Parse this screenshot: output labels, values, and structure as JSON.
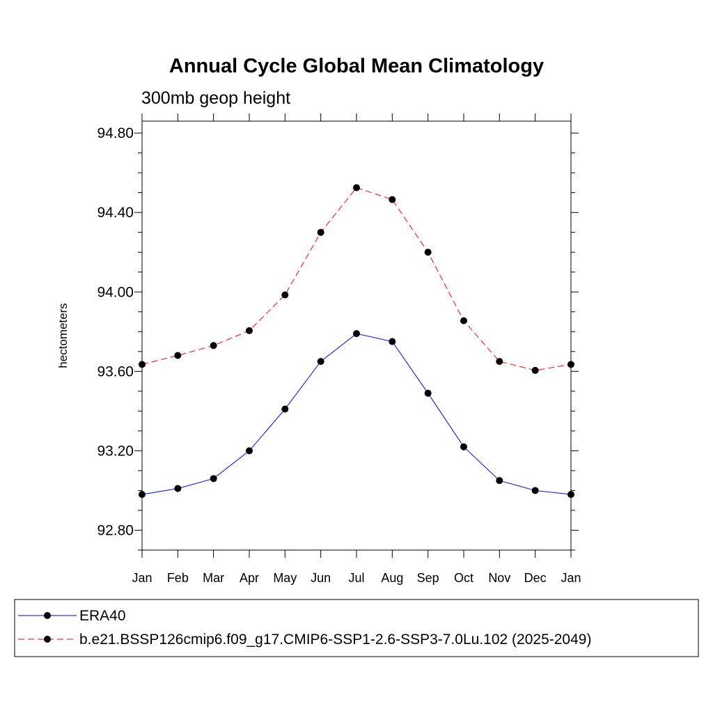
{
  "chart_data": {
    "type": "line",
    "title": "Annual Cycle Global Mean Climatology",
    "subtitle": "300mb geop height",
    "ylabel": "hectometers",
    "xlabel": "",
    "categories": [
      "Jan",
      "Feb",
      "Mar",
      "Apr",
      "May",
      "Jun",
      "Jul",
      "Aug",
      "Sep",
      "Oct",
      "Nov",
      "Dec",
      "Jan"
    ],
    "ylim": [
      92.7,
      94.86
    ],
    "yticks": [
      92.8,
      93.2,
      93.6,
      94.0,
      94.4,
      94.8
    ],
    "ytick_labels": [
      "92.80",
      "93.20",
      "93.60",
      "94.00",
      "94.40",
      "94.80"
    ],
    "grid": false,
    "legend_position": "bottom",
    "series": [
      {
        "name": "ERA40",
        "color": "#0000ff",
        "dash": "solid",
        "marker": "circle",
        "values": [
          92.98,
          93.01,
          93.06,
          93.2,
          93.41,
          93.65,
          93.79,
          93.75,
          93.49,
          93.22,
          93.05,
          93.0,
          92.98
        ]
      },
      {
        "name": "b.e21.BSSP126cmip6.f09_g17.CMIP6-SSP1-2.6-SSP3-7.0Lu.102 (2025-2049)",
        "color": "#ff0000",
        "dash": "dashed",
        "marker": "circle",
        "values": [
          93.635,
          93.68,
          93.73,
          93.805,
          93.985,
          94.3,
          94.525,
          94.465,
          94.2,
          93.855,
          93.65,
          93.605,
          93.635
        ]
      }
    ]
  }
}
